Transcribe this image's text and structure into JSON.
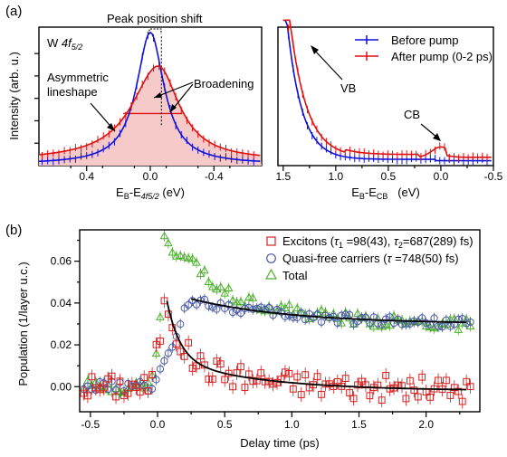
{
  "panel_a": {
    "label": "(a)",
    "chart_data": [
      {
        "type": "line",
        "ylabel": "Intensity (arb. u.)",
        "xlabel_main": "E",
        "xlabel_sub1": "B",
        "xlabel_mid": "-E",
        "xlabel_sub2": "4f5/2",
        "xlabel_unit": " (eV)",
        "xlim": [
          0.7,
          -0.7
        ],
        "ylim": [
          0,
          1.05
        ],
        "xticks": [
          0.4,
          0.0,
          -0.4
        ],
        "xtick_labels": [
          "0.4",
          "0.0",
          "-0.4"
        ],
        "inset_label": "W ",
        "inset_label_italic": "4f",
        "inset_label_sub": "5/2",
        "series": [
          {
            "name": "Before pump",
            "color": "#1010d8",
            "center": 0.0,
            "width": 0.105,
            "amp": 1.0,
            "base": 0.01
          },
          {
            "name": "After pump (0-2 ps)",
            "color": "#e01010",
            "center": -0.05,
            "width": 0.16,
            "amp": 0.72,
            "base": 0.035
          }
        ],
        "annotations": {
          "peak_shift": "Peak position shift",
          "asym_line1": "Asymmetric",
          "asym_line2": "lineshape",
          "broadening": "Broadening"
        }
      },
      {
        "type": "line",
        "xlabel_main": "E",
        "xlabel_sub1": "B",
        "xlabel_mid": "-E",
        "xlabel_sub2": "CB",
        "xlabel_unit": "   (eV)",
        "xlim": [
          1.55,
          -0.5
        ],
        "ylim": [
          0,
          1.0
        ],
        "xticks": [
          1.5,
          1.0,
          0.5,
          0.0,
          -0.5
        ],
        "xtick_labels": [
          "1.5",
          "1.0",
          "0.5",
          "0.0",
          "-0.5"
        ],
        "legend": {
          "position": "top-right",
          "entries": [
            "Before pump",
            "After pump (0-2 ps)"
          ]
        },
        "annotations": {
          "vb": "VB",
          "cb": "CB"
        }
      }
    ]
  },
  "panel_b": {
    "label": "(b)",
    "chart_data": {
      "type": "scatter",
      "xlabel": "Delay time (ps)",
      "ylabel": "Population (1/layer u.c.)",
      "xlim": [
        -0.58,
        2.4
      ],
      "ylim": [
        -0.012,
        0.075
      ],
      "xticks": [
        -0.5,
        0.0,
        0.5,
        1.0,
        1.5,
        2.0
      ],
      "xtick_labels": [
        "-0.5",
        "0.0",
        "0.5",
        "1.0",
        "1.5",
        "2.0"
      ],
      "yticks": [
        0.0,
        0.02,
        0.04,
        0.06
      ],
      "ytick_labels": [
        "0.00",
        "0.02",
        "0.04",
        "0.06"
      ],
      "legend_position": "top-right",
      "series": [
        {
          "name_prefix": "Excitons (",
          "tau1_label": "τ",
          "tau1_sub": "1",
          "tau1_val": " =98(43), ",
          "tau2_label": "τ",
          "tau2_sub": "2",
          "tau2_val": "=687(289) fs)",
          "color": "#d42020",
          "marker": "square",
          "tau1_ps": 0.098,
          "tau2_ps": 0.687
        },
        {
          "name_prefix": "Quasi-free carriers (",
          "tau_label": "τ",
          "tau_val": " =748(50) fs)",
          "color": "#4a5aa8",
          "marker": "circle",
          "tau_ps": 0.748
        },
        {
          "name": "Total",
          "color": "#4caf2a",
          "marker": "triangle"
        }
      ]
    }
  }
}
